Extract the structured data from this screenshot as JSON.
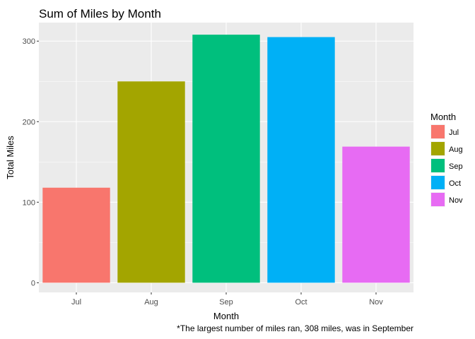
{
  "chart_data": {
    "type": "bar",
    "title": "Sum of Miles by Month",
    "xlabel": "Month",
    "ylabel": "Total Miles",
    "categories": [
      "Jul",
      "Aug",
      "Sep",
      "Oct",
      "Nov"
    ],
    "values": [
      118,
      250,
      308,
      305,
      169
    ],
    "colors": [
      "#F8766D",
      "#A3A500",
      "#00BF7D",
      "#00B0F6",
      "#E76BF3"
    ],
    "ylim": [
      -12,
      323
    ],
    "yticks": [
      0,
      100,
      200,
      300
    ],
    "grid": true,
    "panel_background": "#EBEBEB",
    "legend": {
      "title": "Month",
      "position": "right",
      "entries": [
        "Jul",
        "Aug",
        "Sep",
        "Oct",
        "Nov"
      ]
    },
    "caption": "*The largest number of miles ran, 308 miles, was in September"
  }
}
